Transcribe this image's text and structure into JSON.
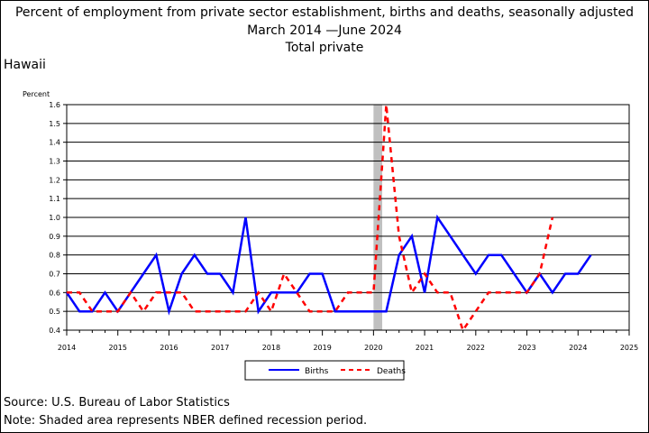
{
  "chart_data": {
    "type": "line",
    "title": "Percent of employment from private sector establishment, births and deaths, seasonally adjusted",
    "subtitle": "March 2014 —June 2024",
    "subtitle2": "Total private",
    "region": "Hawaii",
    "ylabel": "Percent",
    "xlim": [
      2014,
      2025
    ],
    "ylim": [
      0.4,
      1.6
    ],
    "yticks": [
      "0.4",
      "0.5",
      "0.6",
      "0.7",
      "0.8",
      "0.9",
      "1.0",
      "1.1",
      "1.2",
      "1.3",
      "1.4",
      "1.5",
      "1.6"
    ],
    "xticks": [
      "2014",
      "2015",
      "2016",
      "2017",
      "2018",
      "2019",
      "2020",
      "2021",
      "2022",
      "2023",
      "2024",
      "2025"
    ],
    "grid": true,
    "recession": [
      2020.0,
      2020.17
    ],
    "series": [
      {
        "name": "Births",
        "color": "#0000ff",
        "style": "solid",
        "x": [
          2014.0,
          2014.25,
          2014.5,
          2014.75,
          2015.0,
          2015.25,
          2015.5,
          2015.75,
          2016.0,
          2016.25,
          2016.5,
          2016.75,
          2017.0,
          2017.25,
          2017.5,
          2017.75,
          2018.0,
          2018.25,
          2018.5,
          2018.75,
          2019.0,
          2019.25,
          2019.5,
          2019.75,
          2020.0,
          2020.25,
          2020.5,
          2020.75,
          2021.0,
          2021.25,
          2021.5,
          2021.75,
          2022.0,
          2022.25,
          2022.5,
          2022.75,
          2023.0,
          2023.25,
          2023.5,
          2023.75,
          2024.0,
          2024.25
        ],
        "values": [
          0.6,
          0.5,
          0.5,
          0.6,
          0.5,
          0.6,
          0.7,
          0.8,
          0.5,
          0.7,
          0.8,
          0.7,
          0.7,
          0.6,
          1.0,
          0.5,
          0.6,
          0.6,
          0.6,
          0.7,
          0.7,
          0.5,
          0.5,
          0.5,
          0.5,
          0.5,
          0.8,
          0.9,
          0.6,
          1.0,
          0.9,
          0.8,
          0.7,
          0.8,
          0.8,
          0.7,
          0.6,
          0.7,
          0.6,
          0.7,
          0.7,
          0.8
        ]
      },
      {
        "name": "Deaths",
        "color": "#ff0000",
        "style": "dashed",
        "x": [
          2014.0,
          2014.25,
          2014.5,
          2014.75,
          2015.0,
          2015.25,
          2015.5,
          2015.75,
          2016.0,
          2016.25,
          2016.5,
          2016.75,
          2017.0,
          2017.25,
          2017.5,
          2017.75,
          2018.0,
          2018.25,
          2018.5,
          2018.75,
          2019.0,
          2019.25,
          2019.5,
          2019.75,
          2020.0,
          2020.25,
          2020.5,
          2020.75,
          2021.0,
          2021.25,
          2021.5,
          2021.75,
          2022.0,
          2022.25,
          2022.5,
          2022.75,
          2023.0,
          2023.25,
          2023.5
        ],
        "values": [
          0.6,
          0.6,
          0.5,
          0.5,
          0.5,
          0.6,
          0.5,
          0.6,
          0.6,
          0.6,
          0.5,
          0.5,
          0.5,
          0.5,
          0.5,
          0.6,
          0.5,
          0.7,
          0.6,
          0.5,
          0.5,
          0.5,
          0.6,
          0.6,
          0.6,
          1.6,
          0.9,
          0.6,
          0.7,
          0.6,
          0.6,
          0.4,
          0.5,
          0.6,
          0.6,
          0.6,
          0.6,
          0.7,
          1.0
        ]
      }
    ],
    "legend": [
      "Births",
      "Deaths"
    ],
    "legend_position": "bottom-center"
  },
  "footer": {
    "source": "Source: U.S. Bureau of Labor Statistics",
    "note": "Note: Shaded area represents NBER defined recession period."
  }
}
